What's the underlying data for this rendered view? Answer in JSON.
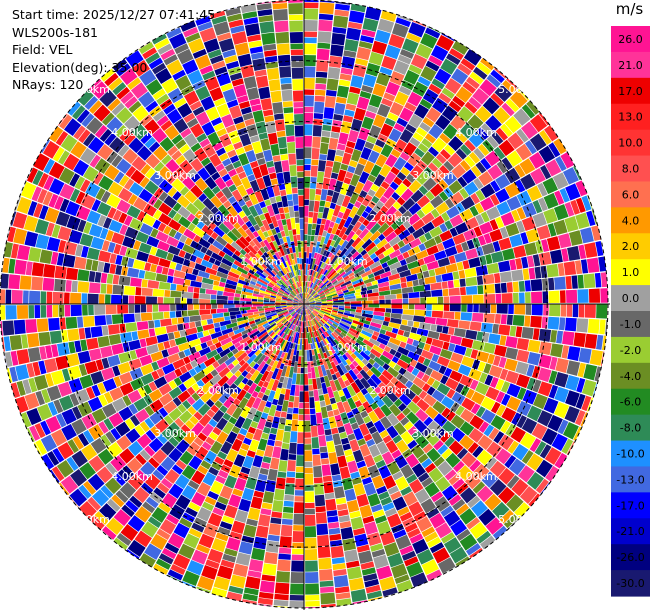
{
  "info": {
    "start_time": "Start time: 2025/12/27 07:41:45",
    "device": "WLS200s-181",
    "field": "Field: VEL",
    "elevation": "Elevation(deg): 35.00",
    "nrays": "NRays: 120"
  },
  "chart_data": {
    "type": "heatmap",
    "projection": "polar",
    "title": "",
    "field": "VEL",
    "nrays": 120,
    "range_ring_labels": [
      "1.00km",
      "2.00km",
      "3.00km",
      "4.00km",
      "5.00km"
    ],
    "range_rings_km": [
      1,
      2,
      3,
      4,
      5
    ],
    "max_range_km": 5.0,
    "colorbar": {
      "unit": "m/s",
      "ticks": [
        "26.0",
        "21.0",
        "17.0",
        "13.0",
        "10.0",
        "8.0",
        "6.0",
        "4.0",
        "2.0",
        "1.0",
        "0.0",
        "-1.0",
        "-2.0",
        "-4.0",
        "-6.0",
        "-8.0",
        "-10.0",
        "-13.0",
        "-17.0",
        "-21.0",
        "-26.0",
        "-30.0"
      ],
      "colors": [
        "#ff1493",
        "#ff3399",
        "#ee0000",
        "#ff2020",
        "#ff3333",
        "#ff5050",
        "#ff7050",
        "#ff9900",
        "#ffcc00",
        "#ffff00",
        "#a0a0a0",
        "#686868",
        "#9acd32",
        "#6b8e23",
        "#228b22",
        "#2e8b57",
        "#1e90ff",
        "#4169e1",
        "#0000ff",
        "#0000cd",
        "#000080",
        "#191970"
      ]
    }
  }
}
